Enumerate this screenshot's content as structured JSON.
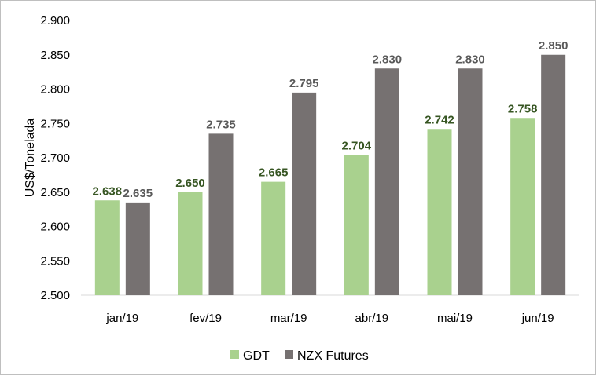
{
  "chart_data": {
    "type": "bar",
    "title": "",
    "xlabel": "",
    "ylabel": "US$/Tonelada",
    "categories": [
      "jan/19",
      "fev/19",
      "mar/19",
      "abr/19",
      "mai/19",
      "jun/19"
    ],
    "series": [
      {
        "name": "GDT",
        "color": "#a9d18e",
        "label_color": "#375623",
        "values": [
          2638,
          2650,
          2665,
          2704,
          2742,
          2758
        ],
        "labels": [
          "2.638",
          "2.650",
          "2.665",
          "2.704",
          "2.742",
          "2.758"
        ]
      },
      {
        "name": "NZX Futures",
        "color": "#767171",
        "label_color": "#595959",
        "values": [
          2635,
          2735,
          2795,
          2830,
          2830,
          2850
        ],
        "labels": [
          "2.635",
          "2.735",
          "2.795",
          "2.830",
          "2.830",
          "2.850"
        ]
      }
    ],
    "ylim": [
      2500,
      2900
    ],
    "yticks": [
      2500,
      2550,
      2600,
      2650,
      2700,
      2750,
      2800,
      2850,
      2900
    ],
    "ytick_labels": [
      "2.500",
      "2.550",
      "2.600",
      "2.650",
      "2.700",
      "2.750",
      "2.800",
      "2.850",
      "2.900"
    ],
    "grid": false,
    "legend_position": "bottom"
  }
}
